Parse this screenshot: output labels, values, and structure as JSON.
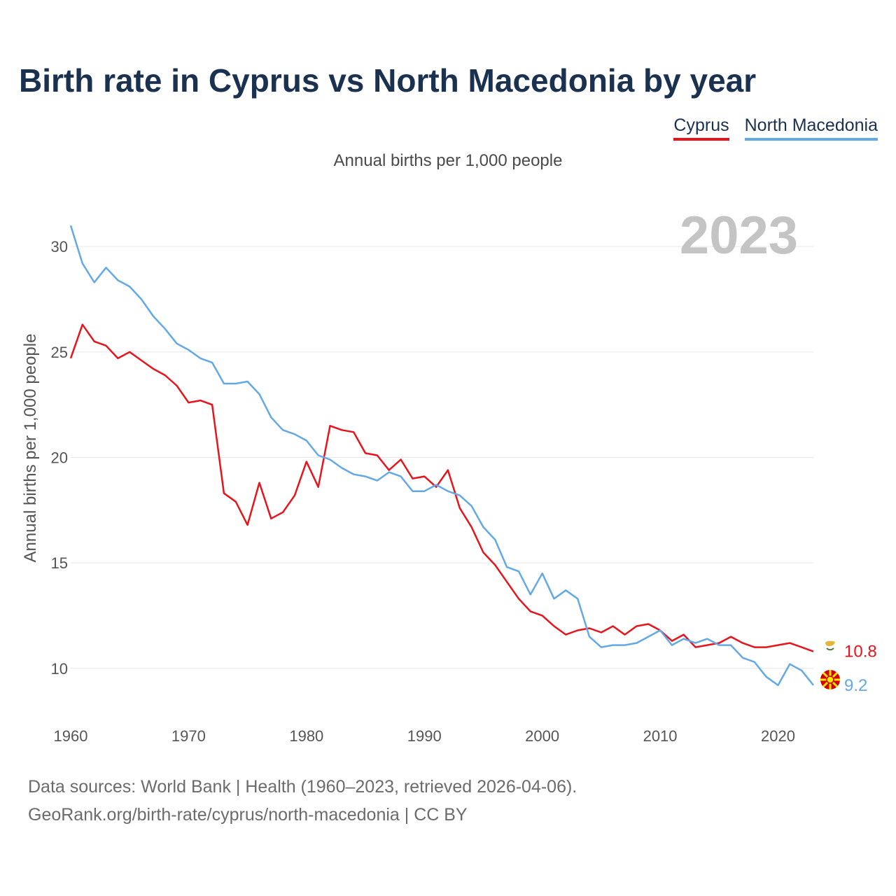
{
  "colors": {
    "cyprus": "#e8141c",
    "north_macedonia": "#63a9e6",
    "title": "#1b3150",
    "grid": "#e6e6e6"
  },
  "chart_data": {
    "type": "line",
    "title": "Birth rate in Cyprus vs North Macedonia by year",
    "subtitle": "Annual births per 1,000 people",
    "xlabel": "",
    "ylabel": "Annual births per 1,000 people",
    "watermark_year": "2023",
    "xlim": [
      1960,
      2023
    ],
    "ylim": [
      8.2,
      31.4
    ],
    "x_ticks": [
      "1960",
      "1970",
      "1980",
      "1990",
      "2000",
      "2010",
      "2020"
    ],
    "y_ticks": [
      "10",
      "15",
      "20",
      "25",
      "30"
    ],
    "x": [
      1960,
      1961,
      1962,
      1963,
      1964,
      1965,
      1966,
      1967,
      1968,
      1969,
      1970,
      1971,
      1972,
      1973,
      1974,
      1975,
      1976,
      1977,
      1978,
      1979,
      1980,
      1981,
      1982,
      1983,
      1984,
      1985,
      1986,
      1987,
      1988,
      1989,
      1990,
      1991,
      1992,
      1993,
      1994,
      1995,
      1996,
      1997,
      1998,
      1999,
      2000,
      2001,
      2002,
      2003,
      2004,
      2005,
      2006,
      2007,
      2008,
      2009,
      2010,
      2011,
      2012,
      2013,
      2014,
      2015,
      2016,
      2017,
      2018,
      2019,
      2020,
      2021,
      2022,
      2023
    ],
    "series": [
      {
        "name": "Cyprus",
        "end_label": "10.8",
        "values": [
          24.7,
          26.3,
          25.5,
          25.3,
          24.7,
          25.0,
          24.6,
          24.2,
          23.9,
          23.4,
          22.6,
          22.7,
          22.5,
          18.3,
          17.9,
          16.8,
          18.8,
          17.1,
          17.4,
          18.2,
          19.8,
          18.6,
          21.5,
          21.3,
          21.2,
          20.2,
          20.1,
          19.4,
          19.9,
          19.0,
          19.1,
          18.6,
          19.4,
          17.6,
          16.7,
          15.5,
          14.9,
          14.1,
          13.3,
          12.7,
          12.5,
          12.0,
          11.6,
          11.8,
          11.9,
          11.7,
          12.0,
          11.6,
          12.0,
          12.1,
          11.8,
          11.3,
          11.6,
          11.0,
          11.1,
          11.2,
          11.5,
          11.2,
          11.0,
          11.0,
          11.1,
          11.2,
          11.0,
          10.8
        ]
      },
      {
        "name": "North Macedonia",
        "end_label": "9.2",
        "values": [
          31.0,
          29.2,
          28.3,
          29.0,
          28.4,
          28.1,
          27.5,
          26.7,
          26.1,
          25.4,
          25.1,
          24.7,
          24.5,
          23.5,
          23.5,
          23.6,
          23.0,
          21.9,
          21.3,
          21.1,
          20.8,
          20.1,
          19.9,
          19.5,
          19.2,
          19.1,
          18.9,
          19.3,
          19.1,
          18.4,
          18.4,
          18.7,
          18.4,
          18.2,
          17.7,
          16.7,
          16.1,
          14.8,
          14.6,
          13.5,
          14.5,
          13.3,
          13.7,
          13.3,
          11.5,
          11.0,
          11.1,
          11.1,
          11.2,
          11.5,
          11.8,
          11.1,
          11.4,
          11.2,
          11.4,
          11.1,
          11.1,
          10.5,
          10.3,
          9.6,
          9.2,
          10.2,
          9.9,
          9.2
        ]
      }
    ]
  },
  "footer": {
    "source_line": "Data sources: World Bank | Health (1960–2023, retrieved 2026-04-06).",
    "credit_line": "GeoRank.org/birth-rate/cyprus/north-macedonia | CC BY"
  }
}
